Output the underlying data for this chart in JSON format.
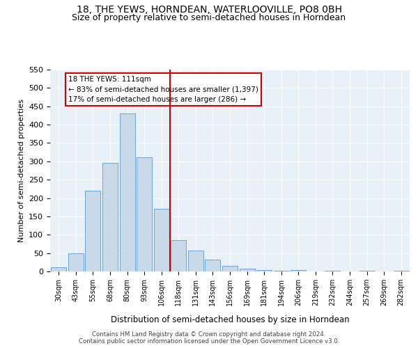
{
  "title": "18, THE YEWS, HORNDEAN, WATERLOOVILLE, PO8 0BH",
  "subtitle": "Size of property relative to semi-detached houses in Horndean",
  "xlabel": "Distribution of semi-detached houses by size in Horndean",
  "ylabel": "Number of semi-detached properties",
  "bin_labels": [
    "30sqm",
    "43sqm",
    "55sqm",
    "68sqm",
    "80sqm",
    "93sqm",
    "106sqm",
    "118sqm",
    "131sqm",
    "143sqm",
    "156sqm",
    "169sqm",
    "181sqm",
    "194sqm",
    "206sqm",
    "219sqm",
    "232sqm",
    "244sqm",
    "257sqm",
    "269sqm",
    "282sqm"
  ],
  "bar_values": [
    12,
    49,
    220,
    295,
    430,
    311,
    170,
    85,
    57,
    33,
    15,
    8,
    4,
    2,
    3,
    0,
    1,
    0,
    2,
    0,
    2
  ],
  "bar_color": "#c9d9e8",
  "bar_edge_color": "#5b9bd5",
  "vline_x": 6.5,
  "property_line_label": "18 THE YEWS: 111sqm",
  "annotation_line1": "← 83% of semi-detached houses are smaller (1,397)",
  "annotation_line2": "17% of semi-detached houses are larger (286) →",
  "annotation_box_color": "#ffffff",
  "annotation_box_edge": "#cc0000",
  "vline_color": "#cc0000",
  "ylim": [
    0,
    550
  ],
  "yticks": [
    0,
    50,
    100,
    150,
    200,
    250,
    300,
    350,
    400,
    450,
    500,
    550
  ],
  "footer1": "Contains HM Land Registry data © Crown copyright and database right 2024.",
  "footer2": "Contains public sector information licensed under the Open Government Licence v3.0.",
  "bg_color": "#e8f0f8",
  "title_fontsize": 10,
  "subtitle_fontsize": 9
}
